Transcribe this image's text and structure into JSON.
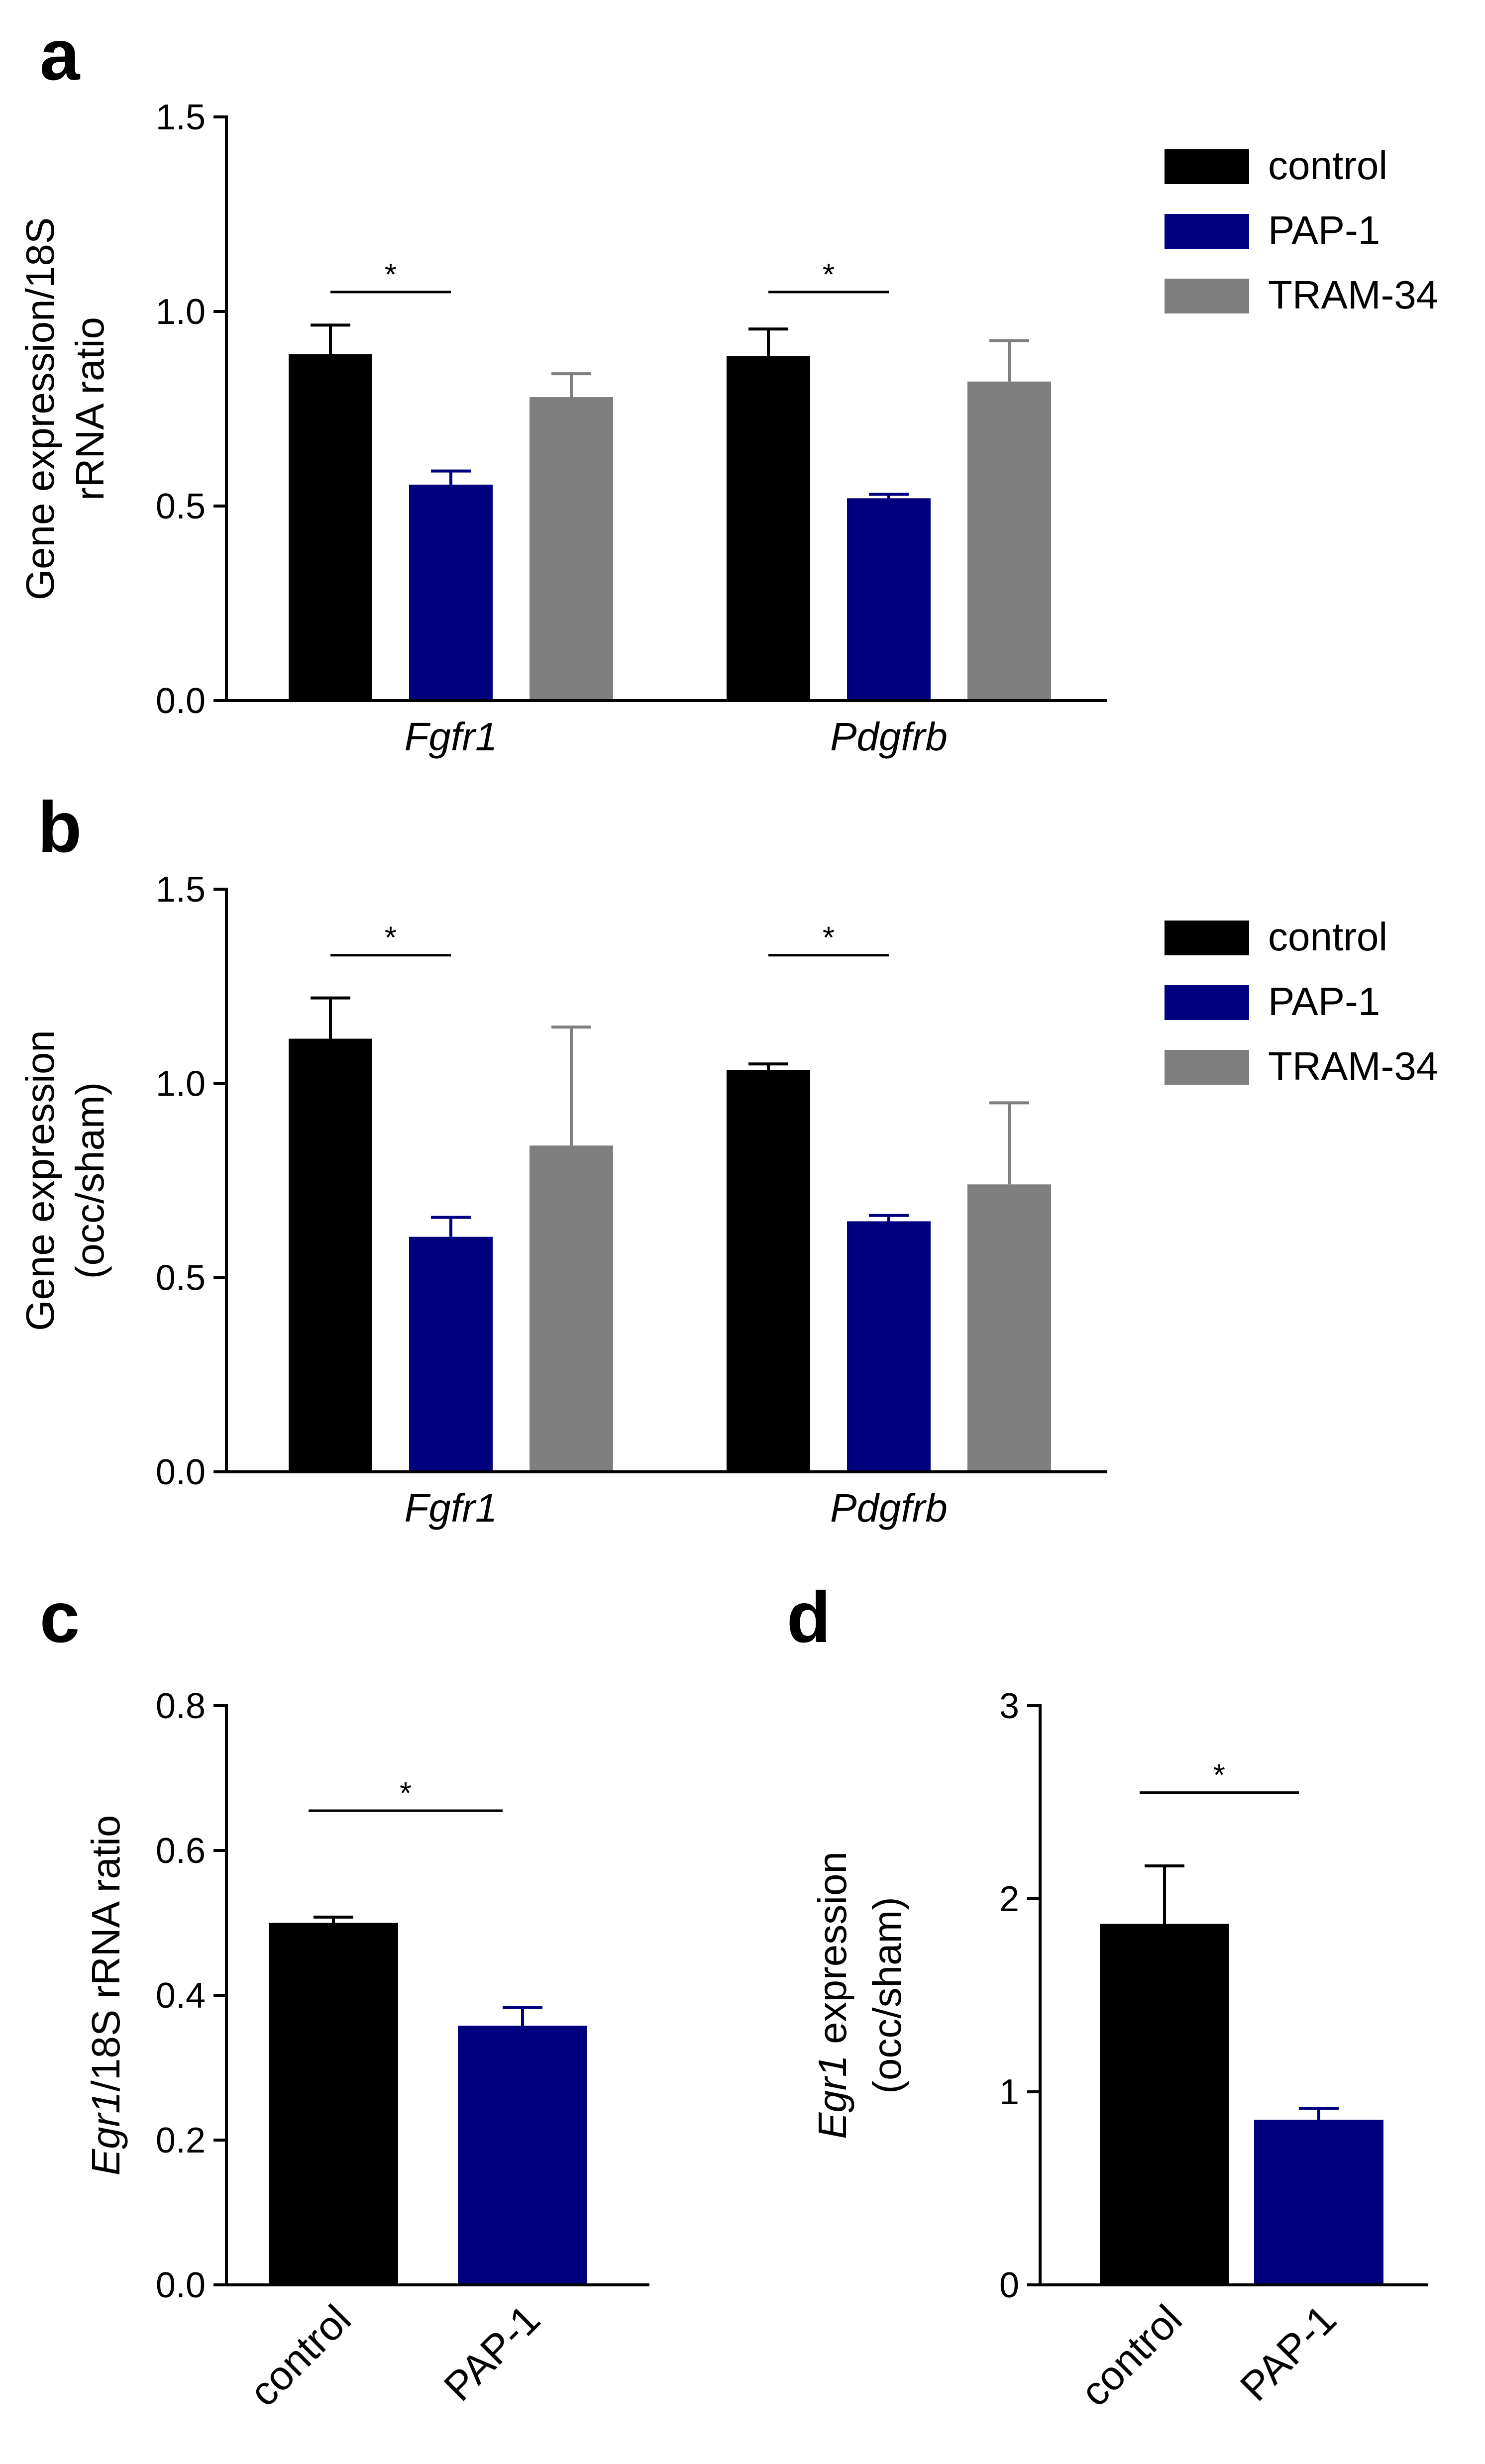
{
  "figure": {
    "colors": {
      "control": "#000000",
      "PAP-1": "#00007f",
      "TRAM-34": "#7f7f7f",
      "axis": "#000000"
    },
    "legend_a": [
      "control",
      "PAP-1",
      "TRAM-34"
    ],
    "legend_b": [
      "control",
      "PAP-1",
      "TRAM-34"
    ]
  },
  "chart_data": [
    {
      "id": "a",
      "panel_label": "a",
      "type": "bar",
      "ylabel_lines": [
        "Gene expression/18S",
        "rRNA ratio"
      ],
      "ylim": [
        0,
        1.5
      ],
      "yticks": [
        "0.0",
        "0.5",
        "1.0",
        "1.5"
      ],
      "categories": [
        "Fgfr1",
        "Pdgfrb"
      ],
      "series": [
        {
          "name": "control",
          "values": [
            0.89,
            0.885
          ],
          "errors": [
            0.075,
            0.07
          ]
        },
        {
          "name": "PAP-1",
          "values": [
            0.555,
            0.52
          ],
          "errors": [
            0.035,
            0.01
          ]
        },
        {
          "name": "TRAM-34",
          "values": [
            0.78,
            0.82
          ],
          "errors": [
            0.06,
            0.105
          ]
        }
      ],
      "significance": [
        {
          "group": 0,
          "from": 0,
          "to": 1,
          "y": 1.05,
          "label": "*"
        },
        {
          "group": 1,
          "from": 0,
          "to": 1,
          "y": 1.05,
          "label": "*"
        }
      ],
      "legend_position": "top-right"
    },
    {
      "id": "b",
      "panel_label": "b",
      "type": "bar",
      "ylabel_lines": [
        "Gene expression",
        "(occ/sham)"
      ],
      "ylim": [
        0,
        1.5
      ],
      "yticks": [
        "0.0",
        "0.5",
        "1.0",
        "1.5"
      ],
      "categories": [
        "Fgfr1",
        "Pdgfrb"
      ],
      "series": [
        {
          "name": "control",
          "values": [
            1.115,
            1.035
          ],
          "errors": [
            0.105,
            0.015
          ]
        },
        {
          "name": "PAP-1",
          "values": [
            0.605,
            0.645
          ],
          "errors": [
            0.05,
            0.015
          ]
        },
        {
          "name": "TRAM-34",
          "values": [
            0.84,
            0.74
          ],
          "errors": [
            0.305,
            0.21
          ]
        }
      ],
      "significance": [
        {
          "group": 0,
          "from": 0,
          "to": 1,
          "y": 1.33,
          "label": "*"
        },
        {
          "group": 1,
          "from": 0,
          "to": 1,
          "y": 1.33,
          "label": "*"
        }
      ],
      "legend_position": "top-right"
    },
    {
      "id": "c",
      "panel_label": "c",
      "type": "bar",
      "ylabel_italic": "Egr1",
      "ylabel_rest": "/18S rRNA ratio",
      "ylim": [
        0,
        0.8
      ],
      "yticks": [
        "0.0",
        "0.2",
        "0.4",
        "0.6",
        "0.8"
      ],
      "categories": [
        "control",
        "PAP-1"
      ],
      "values": [
        0.5,
        0.358
      ],
      "errors": [
        0.008,
        0.025
      ],
      "significance": [
        {
          "from": 0,
          "to": 1,
          "y": 0.655,
          "label": "*"
        }
      ]
    },
    {
      "id": "d",
      "panel_label": "d",
      "type": "bar",
      "ylabel_italic": "Egr1",
      "ylabel_rest": " expression",
      "ylabel_line2": "(occ/sham)",
      "ylim": [
        0,
        3
      ],
      "yticks": [
        "0",
        "1",
        "2",
        "3"
      ],
      "categories": [
        "control",
        "PAP-1"
      ],
      "values": [
        1.87,
        0.855
      ],
      "errors": [
        0.3,
        0.06
      ],
      "significance": [
        {
          "from": 0,
          "to": 1,
          "y": 2.55,
          "label": "*"
        }
      ]
    }
  ]
}
